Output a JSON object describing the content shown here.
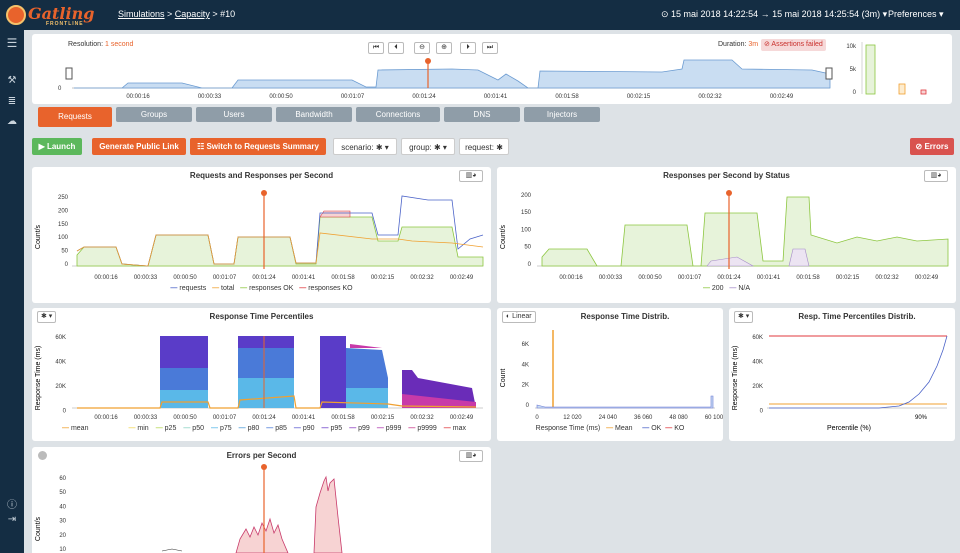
{
  "app": {
    "logo_text": "Gatling",
    "logo_sub": "FRONTLINE",
    "breadcrumb": [
      "Simulations",
      "Capacity",
      "#10"
    ],
    "time_range": "⊙ 15 mai 2018 14:22:54 → 15 mai 2018 14:25:54 (3m) ▾",
    "preferences": "Preferences ▾"
  },
  "colors": {
    "accent": "#e8632c",
    "navbar": "#142d43",
    "ok": "#8cc63f",
    "ko": "#e0383e",
    "requests": "#4a62c8",
    "total": "#f0a030"
  },
  "timeline": {
    "resolution_label": "Resolution:",
    "resolution_value": "1 second",
    "duration_label": "Duration:",
    "duration_value": "3m",
    "assertions": "⊘ Assertions failed",
    "ticks": [
      "00:00:16",
      "00:00:33",
      "00:00:50",
      "00:01:07",
      "00:01:24",
      "00:01:41",
      "00:01:58",
      "00:02:15",
      "00:02:32",
      "00:02:49"
    ],
    "zero": "0",
    "mini_ticks": [
      "10k",
      "5k",
      "0"
    ]
  },
  "tabs": [
    "Requests",
    "Groups",
    "Users",
    "Bandwidth",
    "Connections",
    "DNS",
    "Injectors"
  ],
  "toolbar": {
    "launch": "▶ Launch",
    "public_link": "Generate Public Link",
    "switch": "☷ Switch to Requests Summary",
    "scenario": "scenario: ✱ ▾",
    "group": "group: ✱ ▾",
    "request": "request: ✱",
    "errors": "⊘ Errors"
  },
  "panels": {
    "rr": {
      "title": "Requests and Responses per Second",
      "ylabel": "Count/s",
      "yticks": [
        "250",
        "200",
        "150",
        "100",
        "50",
        "0"
      ],
      "legend": [
        "requests",
        "total",
        "responses OK",
        "responses KO"
      ]
    },
    "status": {
      "title": "Responses per Second by Status",
      "ylabel": "Count/s",
      "yticks": [
        "200",
        "150",
        "100",
        "50",
        "0"
      ],
      "legend": [
        "200",
        "N/A"
      ]
    },
    "pct": {
      "title": "Response Time Percentiles",
      "ylabel": "Response Time (ms)",
      "yticks": [
        "60K",
        "40K",
        "20K",
        "0"
      ],
      "legend": [
        "mean",
        "min",
        "p25",
        "p50",
        "p75",
        "p80",
        "p85",
        "p90",
        "p95",
        "p99",
        "p999",
        "p9999",
        "max"
      ],
      "select": "✱ ▾"
    },
    "distrib": {
      "title": "Response Time Distrib.",
      "toggle": "◐ Linear",
      "ylabel": "Count",
      "yticks": [
        "6K",
        "4K",
        "2K",
        "0"
      ],
      "xticks": [
        "0",
        "12 020",
        "24 040",
        "36 060",
        "48 080",
        "60 100"
      ],
      "xlabel": "Response Time (ms)",
      "legend": [
        "Mean",
        "OK",
        "KO"
      ]
    },
    "pdist": {
      "title": "Resp. Time Percentiles Distrib.",
      "select": "✱ ▾",
      "ylabel": "Response Time (ms)",
      "yticks": [
        "60K",
        "40K",
        "20K",
        "0"
      ],
      "xtick": "90%",
      "xlabel": "Percentile (%)"
    },
    "errors": {
      "title": "Errors per Second",
      "ylabel": "Count/s",
      "yticks": [
        "60",
        "50",
        "40",
        "30",
        "20",
        "10"
      ]
    }
  },
  "xticks": [
    "00:00:16",
    "00:00:33",
    "00:00:50",
    "00:01:07",
    "00:01:24",
    "00:01:41",
    "00:01:58",
    "00:02:15",
    "00:02:32",
    "00:02:49"
  ]
}
